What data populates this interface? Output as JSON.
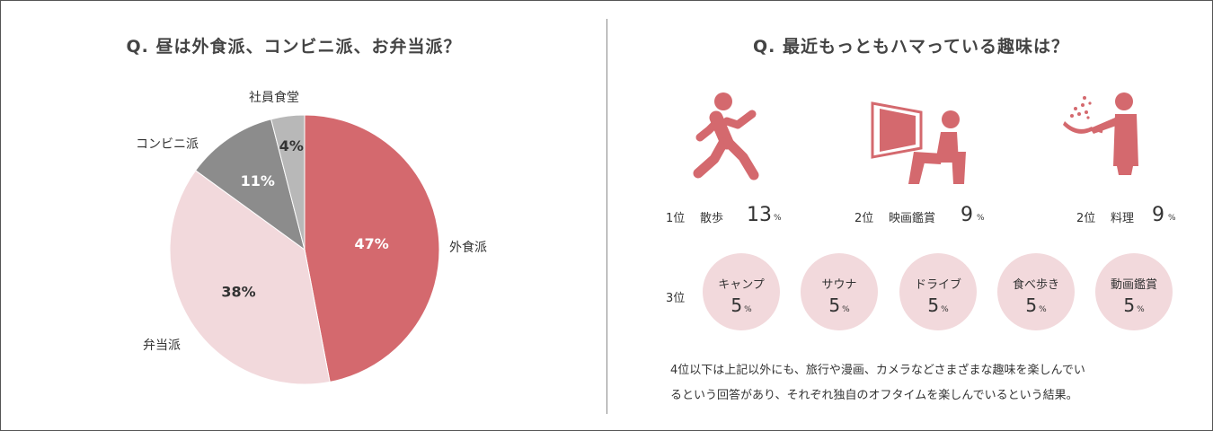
{
  "left": {
    "title": "Q. 昼は外食派、コンビニ派、お弁当派？"
  },
  "right": {
    "title": "Q. 最近もっともハマっている趣味は？",
    "top_ranks": [
      {
        "rank": "1位",
        "name": "散歩",
        "value": "13",
        "unit": "%",
        "icon": "walking-person-icon"
      },
      {
        "rank": "2位",
        "name": "映画鑑賞",
        "value": "9",
        "unit": "%",
        "icon": "movie-viewer-icon"
      },
      {
        "rank": "2位",
        "name": "料理",
        "value": "9",
        "unit": "%",
        "icon": "cooking-person-icon"
      }
    ],
    "third_rank_label": "3位",
    "third_items": [
      {
        "name": "キャンプ",
        "value": "5",
        "unit": "%"
      },
      {
        "name": "サウナ",
        "value": "5",
        "unit": "%"
      },
      {
        "name": "ドライブ",
        "value": "5",
        "unit": "%"
      },
      {
        "name": "食べ歩き",
        "value": "5",
        "unit": "%"
      },
      {
        "name": "動画鑑賞",
        "value": "5",
        "unit": "%"
      }
    ],
    "footnote_lines": [
      "4位以下は上記以外にも、旅行や漫画、カメラなどさまざまな趣味を楽しんでい",
      "るという回答があり、それぞれ独自のオフタイムを楽しんでいるという結果。"
    ]
  },
  "colors": {
    "accent": "#d4696e",
    "light_pink": "#f2d9dc",
    "gray": "#8c8c8c",
    "light_gray": "#b8b8b8"
  },
  "chart_data": {
    "type": "pie",
    "title": "Q. 昼は外食派、コンビニ派、お弁当派？",
    "slices": [
      {
        "label": "外食派",
        "value": 47,
        "display": "47%",
        "color": "#d4696e",
        "text_color": "#ffffff"
      },
      {
        "label": "弁当派",
        "value": 38,
        "display": "38%",
        "color": "#f2d9dc",
        "text_color": "#333333"
      },
      {
        "label": "コンビニ派",
        "value": 11,
        "display": "11%",
        "color": "#8c8c8c",
        "text_color": "#ffffff"
      },
      {
        "label": "社員食堂",
        "value": 4,
        "display": "4%",
        "color": "#b8b8b8",
        "text_color": "#333333"
      }
    ]
  }
}
